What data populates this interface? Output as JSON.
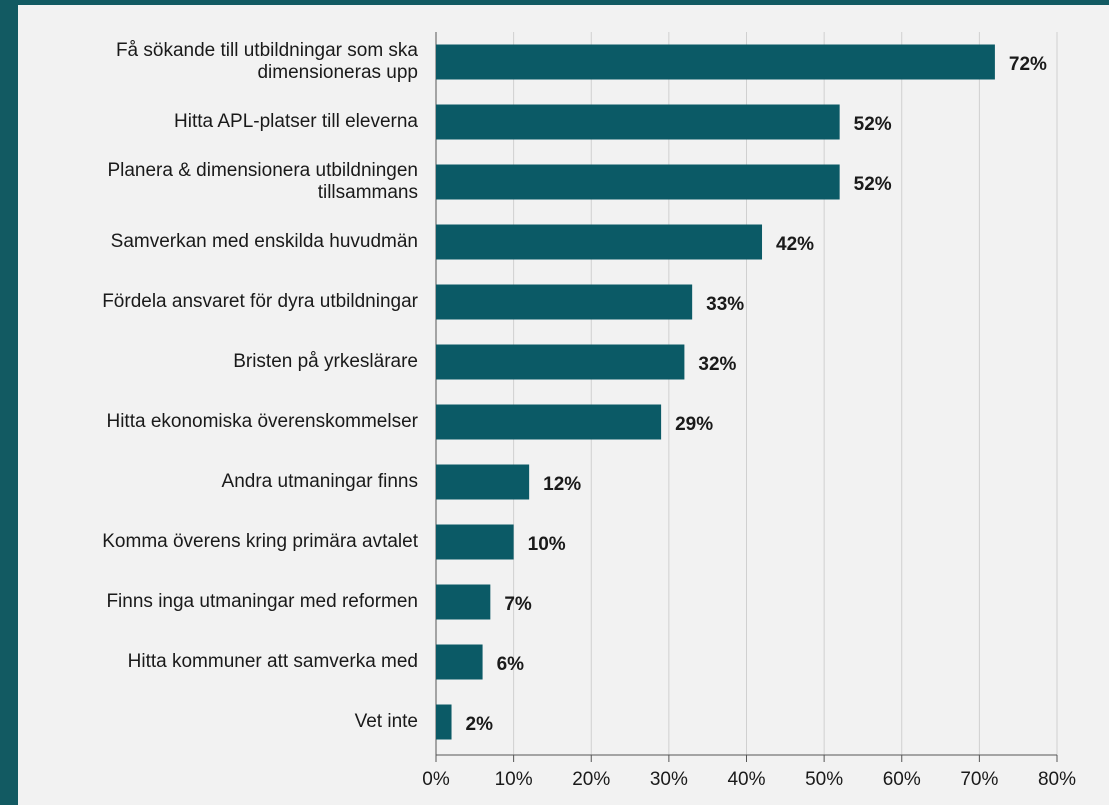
{
  "chart_data": {
    "type": "barh",
    "categories": [
      "Få sökande till utbildningar som ska\ndimensioneras upp",
      "Hitta APL-platser till eleverna",
      "Planera & dimensionera utbildningen\ntillsammans",
      "Samverkan med enskilda huvudmän",
      "Fördela ansvaret för dyra utbildningar",
      "Bristen på yrkeslärare",
      "Hitta ekonomiska överenskommelser",
      "Andra utmaningar finns",
      "Komma överens kring primära avtalet",
      "Finns inga utmaningar med reformen",
      "Hitta kommuner att samverka med",
      "Vet inte"
    ],
    "values": [
      72,
      52,
      52,
      42,
      33,
      32,
      29,
      12,
      10,
      7,
      6,
      2
    ],
    "value_labels": [
      "72%",
      "52%",
      "52%",
      "42%",
      "33%",
      "32%",
      "29%",
      "12%",
      "10%",
      "7%",
      "6%",
      "2%"
    ],
    "color": "#0b5a66",
    "xlim": [
      0,
      80
    ],
    "xticks": [
      {
        "value": 0,
        "label": "0%"
      },
      {
        "value": 10,
        "label": "10%"
      },
      {
        "value": 20,
        "label": "20%"
      },
      {
        "value": 30,
        "label": "30%"
      },
      {
        "value": 40,
        "label": "40%"
      },
      {
        "value": 50,
        "label": "50%"
      },
      {
        "value": 60,
        "label": "60%"
      },
      {
        "value": 70,
        "label": "70%"
      },
      {
        "value": 80,
        "label": "80%"
      }
    ],
    "grid": true
  }
}
